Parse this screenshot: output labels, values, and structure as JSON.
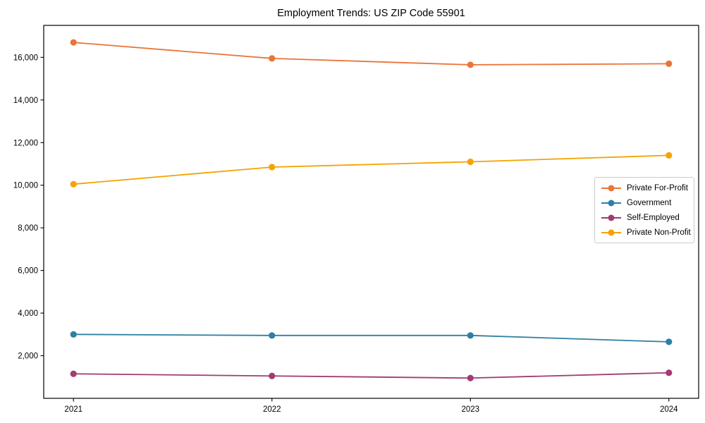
{
  "page": {
    "title": "Employment Trends: US ZIP Code 55901"
  },
  "chart_data": {
    "type": "line",
    "title": "Employment Trends: US ZIP Code 55901",
    "xlabel": "",
    "ylabel": "",
    "x": [
      2021,
      2022,
      2023,
      2024
    ],
    "x_tick_labels": [
      "2021",
      "2022",
      "2023",
      "2024"
    ],
    "y_ticks": [
      2000,
      4000,
      6000,
      8000,
      10000,
      12000,
      14000,
      16000
    ],
    "y_tick_labels": [
      "2,000",
      "4,000",
      "6,000",
      "8,000",
      "10,000",
      "12,000",
      "14,000",
      "16,000"
    ],
    "xlim": [
      2020.85,
      2024.15
    ],
    "ylim": [
      0,
      17500
    ],
    "grid": false,
    "legend_position": "center-right",
    "series": [
      {
        "name": "Private For-Profit",
        "color": "#e8763c",
        "values": [
          16700,
          15950,
          15650,
          15700
        ]
      },
      {
        "name": "Government",
        "color": "#2e7fa5",
        "values": [
          3000,
          2950,
          2950,
          2650
        ]
      },
      {
        "name": "Self-Employed",
        "color": "#a23b72",
        "values": [
          1150,
          1050,
          950,
          1200
        ]
      },
      {
        "name": "Private Non-Profit",
        "color": "#f4a300",
        "values": [
          10050,
          10850,
          11100,
          11400
        ]
      }
    ]
  }
}
